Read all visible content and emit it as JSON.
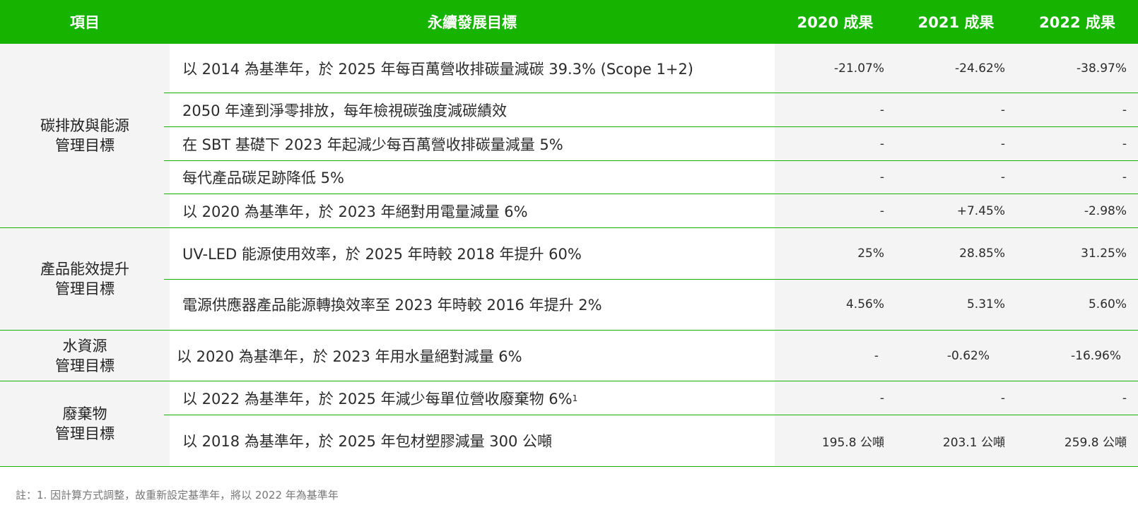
{
  "header": {
    "item": "項目",
    "target": "永續發展目標",
    "y2020": "2020 成果",
    "y2021": "2021 成果",
    "y2022": "2022 成果"
  },
  "groups": [
    {
      "category_line1": "碳排放與能源",
      "category_line2": "管理目標",
      "rows": [
        {
          "target": "以 2014 為基準年，於 2025 年每百萬營收排碳量減碳 39.3% (Scope 1+2)",
          "r2020": "-21.07%",
          "r2021": "-24.62%",
          "r2022": "-38.97%"
        },
        {
          "target": "2050 年達到淨零排放，每年檢視碳強度減碳績效",
          "r2020": "-",
          "r2021": "-",
          "r2022": "-"
        },
        {
          "target": "在 SBT 基礎下 2023 年起減少每百萬營收排碳量減量 5%",
          "r2020": "-",
          "r2021": "-",
          "r2022": "-"
        },
        {
          "target": "每代產品碳足跡降低 5%",
          "r2020": "-",
          "r2021": "-",
          "r2022": "-"
        },
        {
          "target": "以 2020 為基準年，於 2023 年絕對用電量減量 6%",
          "r2020": "-",
          "r2021": "+7.45%",
          "r2022": "-2.98%"
        }
      ]
    },
    {
      "category_line1": "產品能效提升",
      "category_line2": "管理目標",
      "rows": [
        {
          "target": "UV-LED 能源使用效率，於 2025 年時較 2018 年提升 60%",
          "r2020": "25%",
          "r2021": "28.85%",
          "r2022": "31.25%"
        },
        {
          "target": "電源供應器產品能源轉換效率至 2023 年時較 2016 年提升 2%",
          "r2020": "4.56%",
          "r2021": "5.31%",
          "r2022": "5.60%"
        }
      ]
    },
    {
      "category_line1": "水資源",
      "category_line2": "管理目標",
      "rows": [
        {
          "target": "以 2020 為基準年，於 2023 年用水量絕對減量 6%",
          "r2020": "-",
          "r2021": "-0.62%",
          "r2022": "-16.96%"
        }
      ]
    },
    {
      "category_line1": "廢棄物",
      "category_line2": "管理目標",
      "rows": [
        {
          "target": "以 2022 為基準年，於 2025 年減少每單位營收廢棄物 6%",
          "footnote_mark": "1",
          "r2020": "-",
          "r2021": "-",
          "r2022": "-"
        },
        {
          "target": "以 2018 為基準年，於 2025 年包材塑膠減量 300 公噸",
          "r2020": "195.8 公噸",
          "r2021": "203.1 公噸",
          "r2022": "259.8 公噸"
        }
      ]
    }
  ],
  "note": "註：1. 因計算方式調整，故重新設定基準年，將以 2022 年為基準年",
  "colors": {
    "header_bg": "#16b400",
    "header_text": "#ffffff",
    "separator": "#16b400",
    "shaded_cell": "#f4f4f4"
  }
}
